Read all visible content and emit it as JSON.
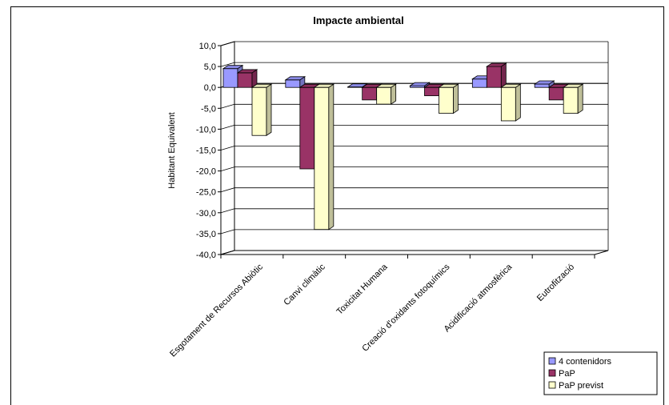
{
  "chart_data": {
    "type": "bar",
    "title": "Impacte ambiental",
    "ylabel": "Habitant Equivalent",
    "xlabel": "",
    "ylim": [
      -40,
      10
    ],
    "yticks": [
      "10,0",
      "5,0",
      "0,0",
      "-5,0",
      "-10,0",
      "-15,0",
      "-20,0",
      "-25,0",
      "-30,0",
      "-35,0",
      "-40,0"
    ],
    "categories": [
      "Esgotament de Recursos Abiòtic",
      "Canvi climàtic",
      "Toxicitat Humana",
      "Creació d'oxidants fotoquímics",
      "Acidificació atmosfèrica",
      "Eutrofització"
    ],
    "series": [
      {
        "name": "4 contenidors",
        "color": "#9999ff",
        "values": [
          4.5,
          1.8,
          0.1,
          0.4,
          2.0,
          0.8
        ]
      },
      {
        "name": "PaP",
        "color": "#993366",
        "values": [
          3.5,
          -19.5,
          -3.0,
          -2.0,
          5.0,
          -3.0
        ]
      },
      {
        "name": "PaP previst",
        "color": "#ffffcc",
        "values": [
          -11.5,
          -34.0,
          -4.0,
          -6.2,
          -8.0,
          -6.2
        ]
      }
    ],
    "grid": true,
    "legend_position": "bottom-right"
  }
}
